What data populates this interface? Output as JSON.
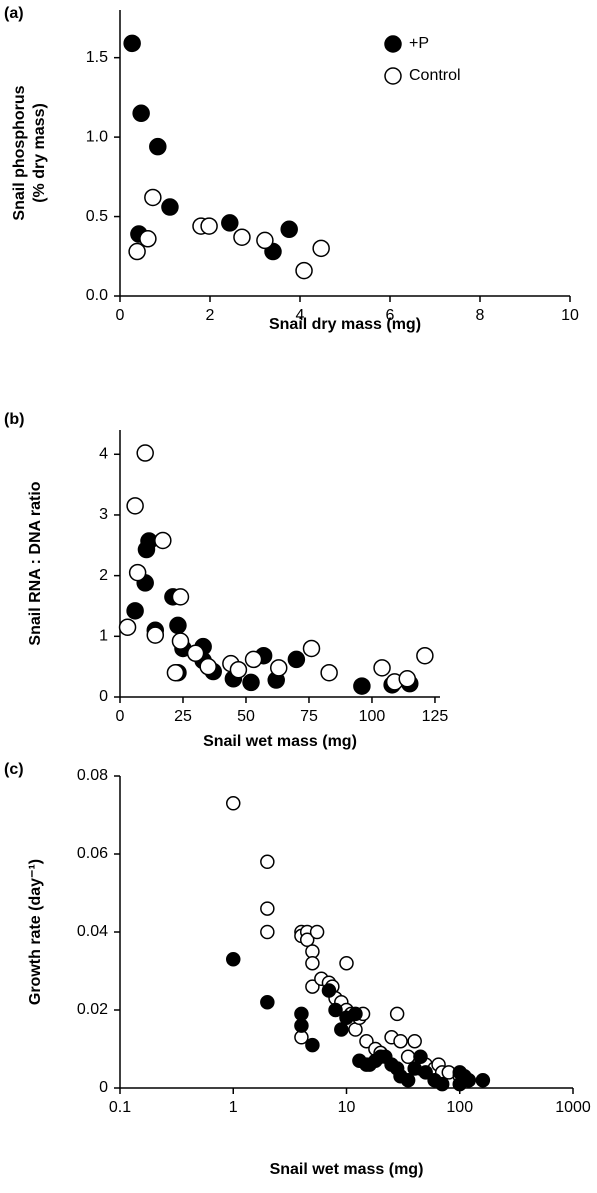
{
  "chart_data": [
    {
      "type": "scatter",
      "panel_label": "(a)",
      "xlabel": "Snail dry mass (mg)",
      "ylabel": [
        "Snail phosphorus",
        "(% dry mass)"
      ],
      "xlim": [
        0,
        10
      ],
      "xticks": [
        0,
        2,
        4,
        6,
        8,
        10
      ],
      "ylim": [
        0,
        1.8
      ],
      "yticks": [
        {
          "value": 0,
          "label": "0.0"
        },
        {
          "value": 0.5,
          "label": "0.5"
        },
        {
          "value": 1,
          "label": "1.0"
        },
        {
          "value": 1.5,
          "label": "1.5"
        }
      ],
      "legend": "top-right",
      "series": [
        {
          "name": "+P",
          "color": "#000000",
          "filled": true,
          "x": [
            0.27,
            0.47,
            0.84,
            1.11,
            0.42,
            2.44,
            3.4,
            3.76
          ],
          "values": [
            1.59,
            1.15,
            0.94,
            0.56,
            0.39,
            0.46,
            0.28,
            0.42
          ]
        },
        {
          "name": "Control",
          "color": "#000000",
          "filled": false,
          "x": [
            0.73,
            0.62,
            0.38,
            1.8,
            1.98,
            2.71,
            3.22,
            4.09,
            4.47
          ],
          "values": [
            0.62,
            0.36,
            0.28,
            0.44,
            0.44,
            0.37,
            0.35,
            0.16,
            0.3
          ]
        }
      ]
    },
    {
      "type": "scatter",
      "panel_label": "(b)",
      "xlabel": "Snail wet mass (mg)",
      "ylabel": [
        "Snail RNA : DNA ratio"
      ],
      "xlim": [
        0,
        127
      ],
      "xticks": [
        0,
        25,
        50,
        75,
        100,
        125
      ],
      "ylim": [
        0,
        4.4
      ],
      "yticks": [
        0,
        1,
        2,
        3,
        4
      ],
      "series": [
        {
          "color": "#000000",
          "filled": true,
          "x": [
            6,
            10,
            10.5,
            11.5,
            14,
            21,
            23,
            23,
            25,
            33,
            33,
            37,
            45,
            52,
            57,
            62,
            70,
            96,
            108,
            115
          ],
          "values": [
            1.42,
            1.88,
            2.43,
            2.57,
            1.1,
            1.65,
            1.18,
            0.4,
            0.8,
            0.83,
            0.6,
            0.42,
            0.3,
            0.24,
            0.68,
            0.28,
            0.62,
            0.18,
            0.2,
            0.22
          ]
        },
        {
          "color": "#000000",
          "filled": false,
          "x": [
            3,
            6,
            7,
            10,
            14,
            17,
            22,
            24,
            24,
            30,
            35,
            44,
            47,
            53,
            63,
            76,
            83,
            104,
            109,
            114,
            121
          ],
          "values": [
            1.15,
            3.15,
            2.05,
            4.02,
            1.02,
            2.58,
            0.4,
            1.65,
            0.92,
            0.72,
            0.5,
            0.55,
            0.45,
            0.62,
            0.48,
            0.8,
            0.4,
            0.48,
            0.25,
            0.3,
            0.68
          ]
        }
      ]
    },
    {
      "type": "scatter",
      "panel_label": "(c)",
      "xlabel": "Snail wet mass (mg)",
      "ylabel": [
        "Growth rate (day⁻¹)"
      ],
      "xscale": "log",
      "xlim": [
        0.1,
        1000
      ],
      "xticks": [
        0.1,
        1,
        10,
        100,
        1000
      ],
      "ylim": [
        0,
        0.08
      ],
      "yticks": [
        0,
        0.02,
        0.04,
        0.06,
        0.08
      ],
      "series": [
        {
          "color": "#000000",
          "filled": false,
          "x": [
            1,
            2,
            2,
            2,
            4,
            4,
            4.5,
            4.5,
            5,
            5,
            5,
            4,
            5.5,
            6,
            7,
            7.5,
            8,
            9,
            10,
            10,
            11,
            12,
            13,
            14,
            15,
            18,
            20,
            25,
            28,
            30,
            35,
            40,
            45,
            50,
            60,
            65,
            70,
            80,
            100,
            120
          ],
          "values": [
            0.073,
            0.058,
            0.046,
            0.04,
            0.04,
            0.039,
            0.04,
            0.038,
            0.035,
            0.032,
            0.026,
            0.013,
            0.04,
            0.028,
            0.027,
            0.026,
            0.023,
            0.022,
            0.032,
            0.02,
            0.019,
            0.015,
            0.018,
            0.019,
            0.012,
            0.01,
            0.009,
            0.013,
            0.019,
            0.012,
            0.008,
            0.012,
            0.005,
            0.006,
            0.005,
            0.006,
            0.004,
            0.004,
            0.003,
            0.002
          ]
        },
        {
          "color": "#000000",
          "filled": true,
          "x": [
            1,
            2,
            4,
            4,
            5,
            7,
            8,
            9,
            10,
            12,
            13,
            15,
            16,
            18,
            20,
            22,
            25,
            28,
            30,
            35,
            40,
            45,
            50,
            60,
            100,
            110,
            120,
            160,
            100,
            70
          ],
          "values": [
            0.033,
            0.022,
            0.019,
            0.016,
            0.011,
            0.025,
            0.02,
            0.015,
            0.018,
            0.019,
            0.007,
            0.006,
            0.006,
            0.007,
            0.008,
            0.008,
            0.006,
            0.005,
            0.003,
            0.002,
            0.005,
            0.008,
            0.004,
            0.002,
            0.004,
            0.003,
            0.002,
            0.002,
            0.001,
            0.001
          ]
        }
      ]
    }
  ]
}
